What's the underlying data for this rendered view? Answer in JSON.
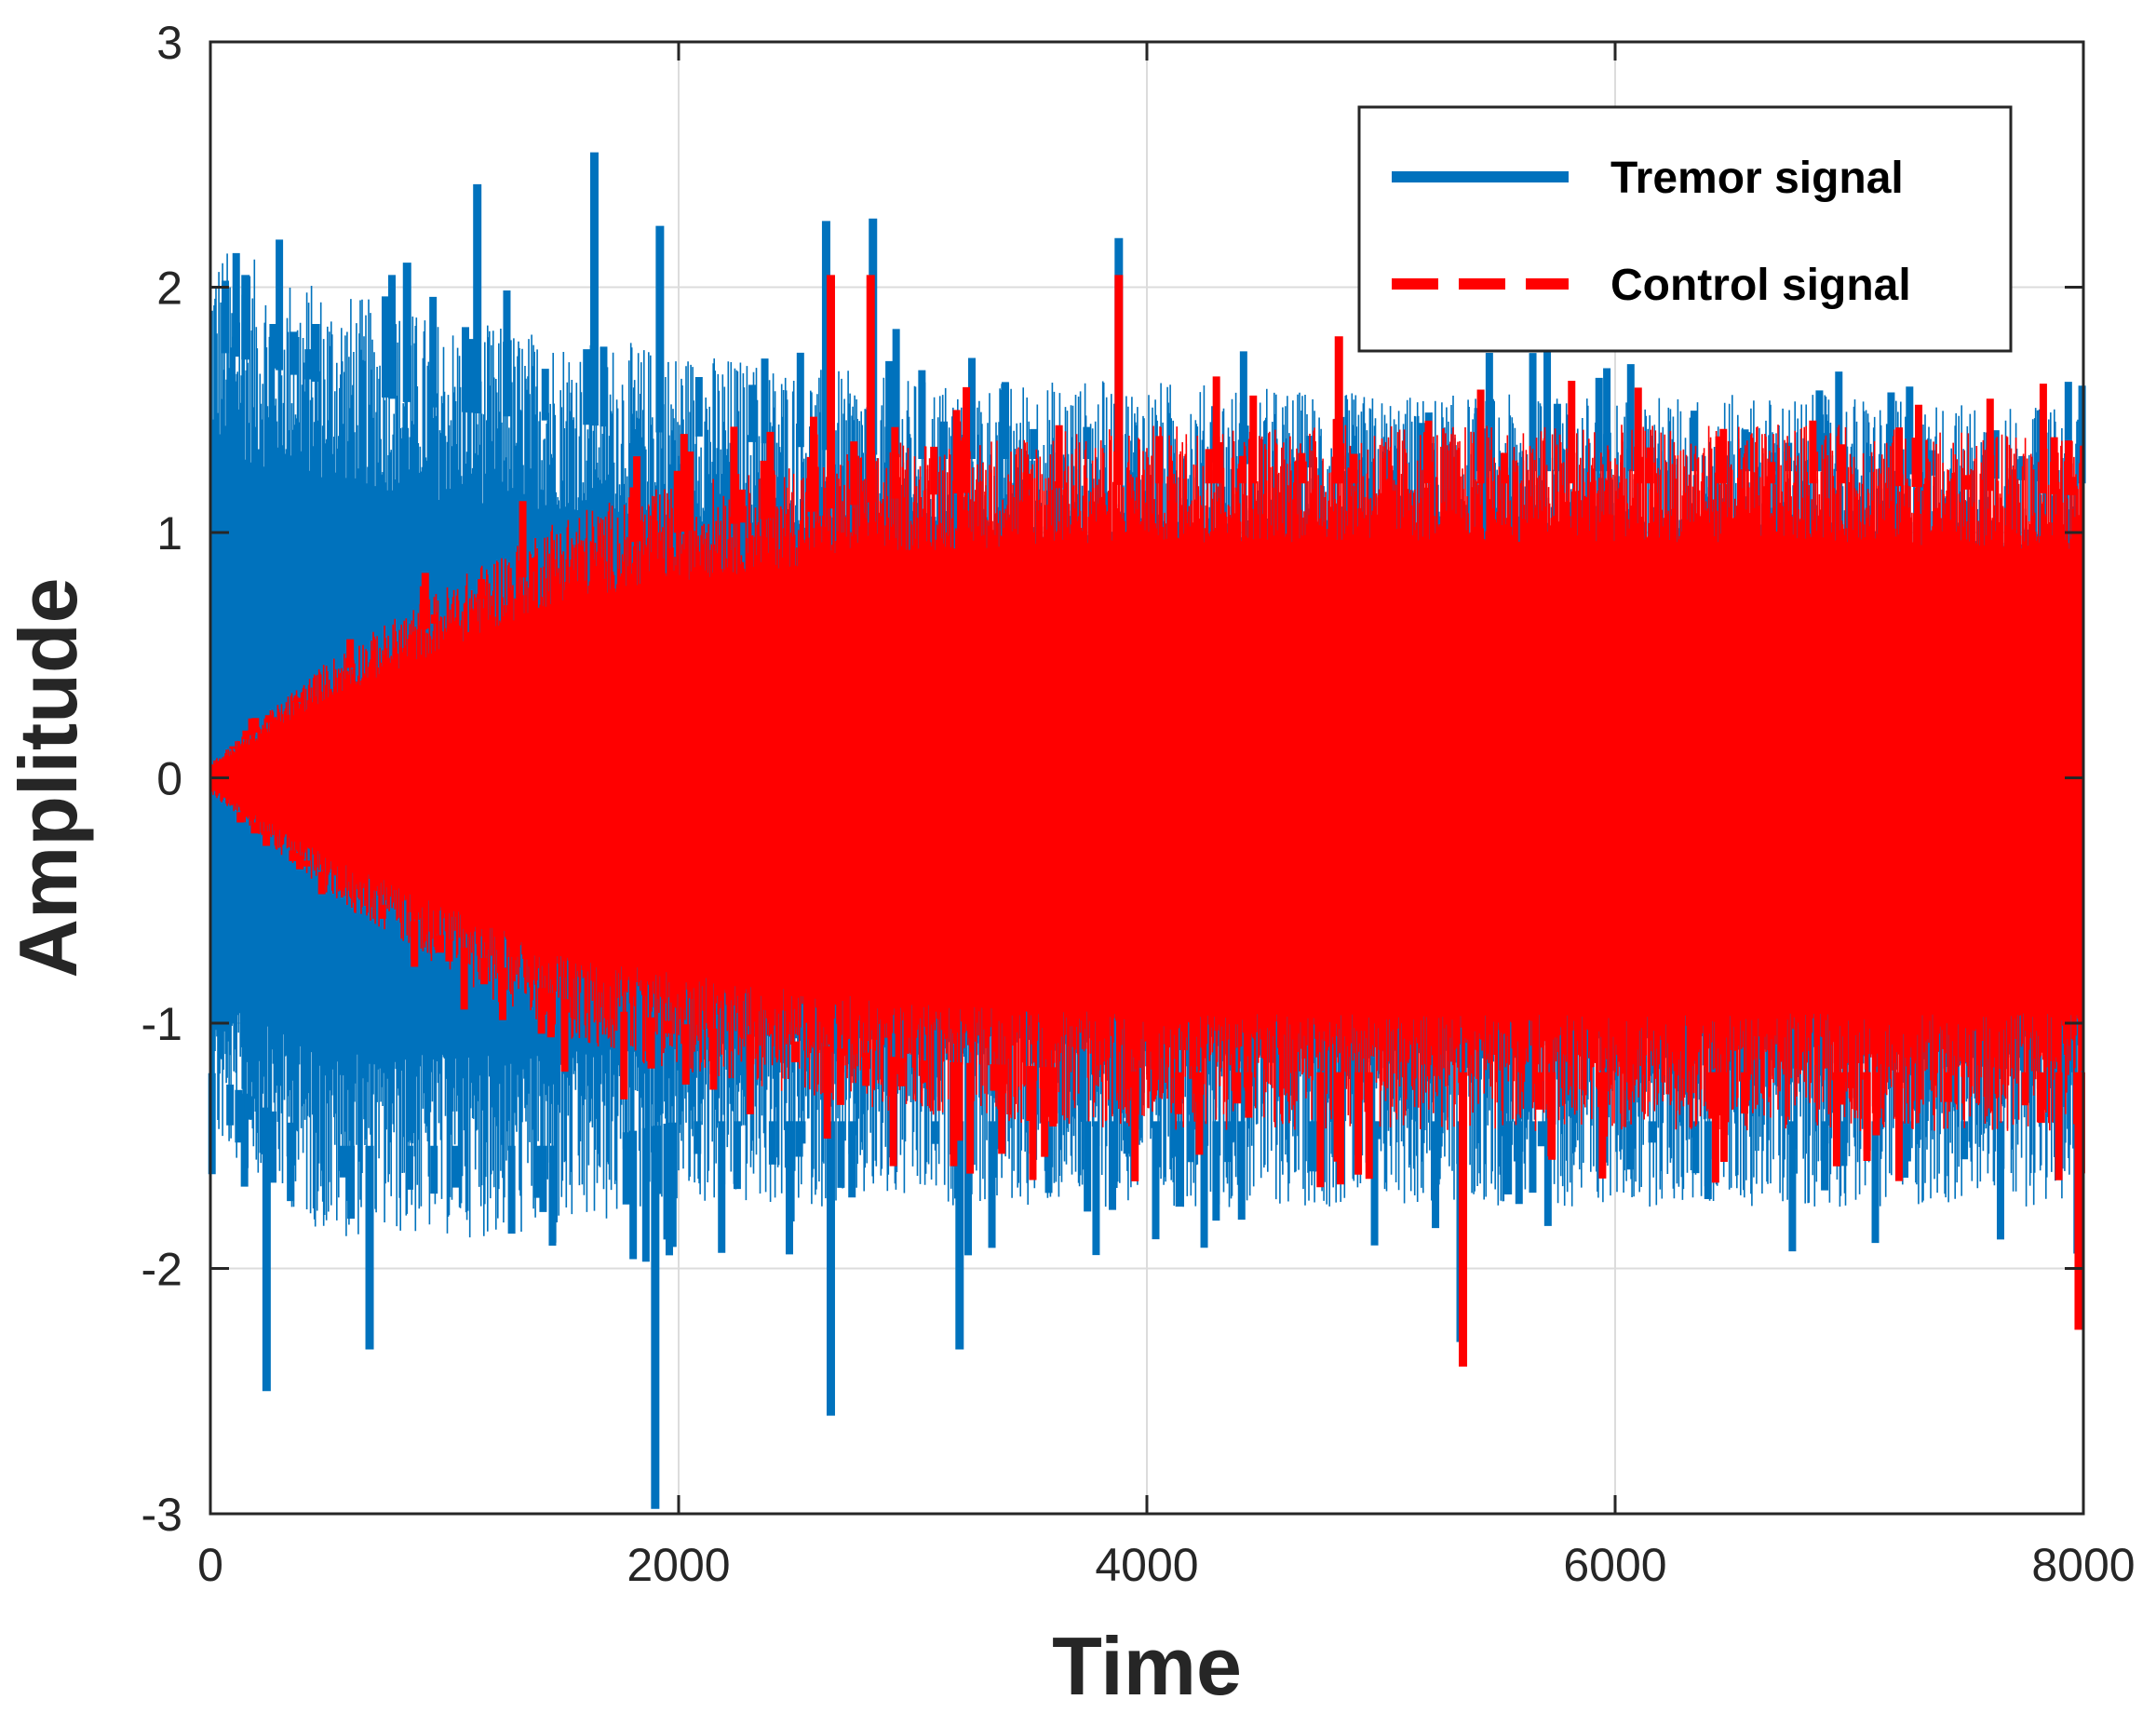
{
  "chart_data": {
    "type": "line",
    "title": "",
    "xlabel": "Time",
    "ylabel": "Amplitude",
    "xlim": [
      0,
      8000
    ],
    "ylim": [
      -3,
      3
    ],
    "xticks": [
      0,
      2000,
      4000,
      6000,
      8000
    ],
    "xtick_labels": [
      "0",
      "2000",
      "4000",
      "6000",
      "8000"
    ],
    "yticks": [
      -3,
      -2,
      -1,
      0,
      1,
      2,
      3
    ],
    "ytick_labels": [
      "-3",
      "-2",
      "-1",
      "0",
      "1",
      "2",
      "3"
    ],
    "grid": true,
    "legend_position": "top-right",
    "series": [
      {
        "name": "Tremor signal",
        "color": "#0072BD",
        "style": "solid",
        "envelope": {
          "x": [
            0,
            500,
            1000,
            1500,
            2000,
            3000,
            4000,
            5000,
            6000,
            7000,
            8000
          ],
          "upper": [
            1.75,
            1.6,
            1.5,
            1.45,
            1.4,
            1.3,
            1.3,
            1.25,
            1.25,
            1.25,
            1.2
          ],
          "lower": [
            -1.2,
            -1.5,
            -1.5,
            -1.5,
            -1.4,
            -1.4,
            -1.4,
            -1.4,
            -1.4,
            -1.4,
            -1.4
          ]
        },
        "peaks": [
          {
            "x": 150,
            "y": 2.05
          },
          {
            "x": 270,
            "y": 1.85
          },
          {
            "x": 450,
            "y": 1.85
          },
          {
            "x": 840,
            "y": 2.1
          },
          {
            "x": 1140,
            "y": 2.42
          },
          {
            "x": 1640,
            "y": 2.55
          },
          {
            "x": 1920,
            "y": 2.25
          },
          {
            "x": 2630,
            "y": 2.27
          },
          {
            "x": 2830,
            "y": 2.28
          },
          {
            "x": 3880,
            "y": 2.2
          },
          {
            "x": 240,
            "y": -2.5
          },
          {
            "x": 680,
            "y": -2.33
          },
          {
            "x": 1900,
            "y": -2.98
          },
          {
            "x": 2650,
            "y": -2.6
          },
          {
            "x": 3200,
            "y": -2.33
          },
          {
            "x": 5340,
            "y": -2.3
          }
        ]
      },
      {
        "name": "Control signal",
        "color": "#FF0000",
        "style": "dashed",
        "envelope": {
          "x": [
            0,
            500,
            1000,
            1500,
            2000,
            3000,
            4000,
            5000,
            6000,
            7000,
            8000
          ],
          "upper": [
            0.05,
            0.4,
            0.65,
            0.9,
            1.0,
            1.15,
            1.2,
            1.2,
            1.2,
            1.2,
            1.15
          ],
          "lower": [
            -0.05,
            -0.4,
            -0.65,
            -0.9,
            -1.0,
            -1.15,
            -1.2,
            -1.2,
            -1.2,
            -1.2,
            -1.2
          ]
        },
        "peaks": [
          {
            "x": 2650,
            "y": 2.05
          },
          {
            "x": 2820,
            "y": 2.05
          },
          {
            "x": 3880,
            "y": 2.05
          },
          {
            "x": 4820,
            "y": 1.8
          },
          {
            "x": 5350,
            "y": -2.4
          },
          {
            "x": 7980,
            "y": -2.25
          }
        ]
      }
    ]
  }
}
